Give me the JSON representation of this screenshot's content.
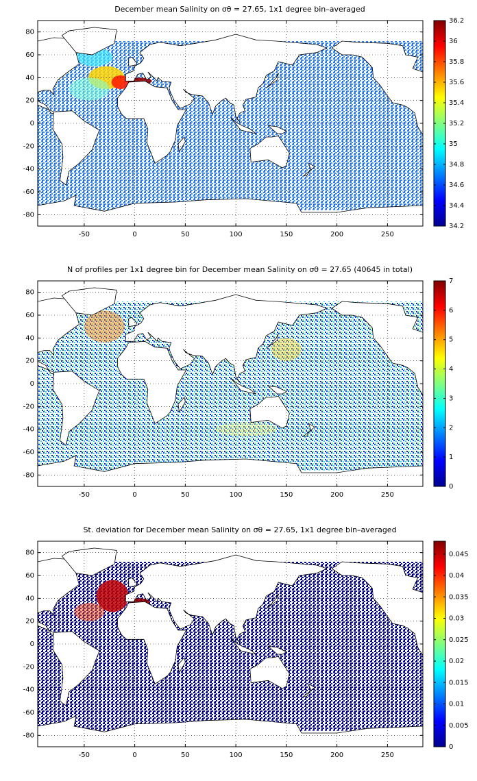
{
  "chart_data": [
    {
      "type": "map",
      "title": "December mean Salinity on σθ = 27.65, 1x1 degree bin–averaged",
      "xlim": [
        -96,
        285
      ],
      "ylim": [
        -90,
        90
      ],
      "xticks": [
        -50,
        0,
        50,
        100,
        150,
        200,
        250
      ],
      "yticks": [
        -80,
        -60,
        -40,
        -20,
        0,
        20,
        40,
        60,
        80
      ],
      "grid": true,
      "clim": [
        34.2,
        36.2
      ],
      "cticks": [
        34.2,
        34.4,
        34.6,
        34.8,
        35,
        35.2,
        35.4,
        35.6,
        35.8,
        36,
        36.2
      ]
    },
    {
      "type": "map",
      "title": "N of profiles per 1x1 degree bin for December mean Salinity on σθ = 27.65 (40645 in total)",
      "xlim": [
        -96,
        285
      ],
      "ylim": [
        -90,
        90
      ],
      "xticks": [
        -50,
        0,
        50,
        100,
        150,
        200,
        250
      ],
      "yticks": [
        -80,
        -60,
        -40,
        -20,
        0,
        20,
        40,
        60,
        80
      ],
      "grid": true,
      "clim": [
        0,
        7
      ],
      "cticks": [
        0,
        1,
        2,
        3,
        4,
        5,
        6,
        7
      ]
    },
    {
      "type": "map",
      "title": "St. deviation for December mean Salinity on σθ = 27.65, 1x1 degree bin–averaged",
      "xlim": [
        -96,
        285
      ],
      "ylim": [
        -90,
        90
      ],
      "xticks": [
        -50,
        0,
        50,
        100,
        150,
        200,
        250
      ],
      "yticks": [
        -80,
        -60,
        -40,
        -20,
        0,
        20,
        40,
        60,
        80
      ],
      "grid": true,
      "clim": [
        0,
        0.048
      ],
      "cticks": [
        0,
        0.005,
        0.01,
        0.015,
        0.02,
        0.025,
        0.03,
        0.035,
        0.04,
        0.045
      ]
    }
  ]
}
